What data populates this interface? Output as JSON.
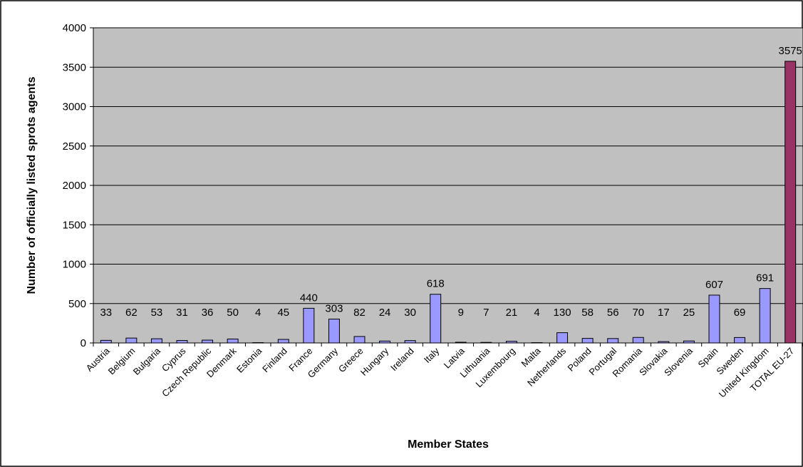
{
  "chart_data": {
    "type": "bar",
    "xlabel": "Member States",
    "ylabel": "Number of officially listed sprots agents",
    "ylim": [
      0,
      4000
    ],
    "yticks": [
      0,
      500,
      1000,
      1500,
      2000,
      2500,
      3000,
      3500,
      4000
    ],
    "grid": true,
    "legend": "none",
    "categories": [
      "Austria",
      "Belgium",
      "Bulgaria",
      "Cyprus",
      "Czech Republic",
      "Denmark",
      "Estonia",
      "Finland",
      "France",
      "Germany",
      "Greece",
      "Hungary",
      "Ireland",
      "Italy",
      "Latvia",
      "Lithuania",
      "Luxembourg",
      "Malta",
      "Netherlands",
      "Poland",
      "Portugal",
      "Romania",
      "Slovakia",
      "Slovenia",
      "Spain",
      "Sweden",
      "United Kingdom",
      "TOTAL EU-27"
    ],
    "values": [
      33,
      62,
      53,
      31,
      36,
      50,
      4,
      45,
      440,
      303,
      82,
      24,
      30,
      618,
      9,
      7,
      21,
      4,
      130,
      58,
      56,
      70,
      17,
      25,
      607,
      69,
      691,
      3575
    ],
    "data_labels": [
      "33",
      "62",
      "53",
      "31",
      "36",
      "50",
      "4",
      "45",
      "440",
      "303",
      "82",
      "24",
      "30",
      "618",
      "9",
      "7",
      "21",
      "4",
      "130",
      "58",
      "56",
      "70",
      "17",
      "25",
      "607",
      "69",
      "691",
      "3575"
    ],
    "colors": {
      "bar": "#9999ff",
      "highlight_bar": "#993366",
      "plot_background": "#c0c0c0",
      "gridline": "#000000",
      "bar_stroke": "#000000"
    },
    "highlight_category": "TOTAL EU-27"
  }
}
